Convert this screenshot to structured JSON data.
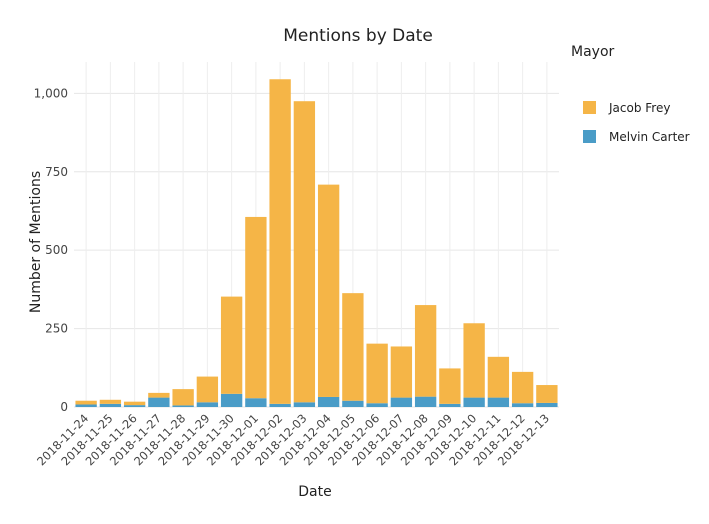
{
  "chart_data": {
    "type": "bar",
    "stacked": true,
    "title": "Mentions by Date",
    "xlabel": "Date",
    "ylabel": "Number of Mentions",
    "ylim": [
      0,
      1100
    ],
    "yticks": [
      0,
      250,
      500,
      750,
      1000
    ],
    "grid": true,
    "legend": {
      "title": "Mayor",
      "placement": "right",
      "entries": [
        {
          "name": "Jacob Frey",
          "color": "#f5b547"
        },
        {
          "name": "Melvin Carter",
          "color": "#4a9cc7"
        }
      ]
    },
    "categories": [
      "2018-11-24",
      "2018-11-25",
      "2018-11-26",
      "2018-11-27",
      "2018-11-28",
      "2018-11-29",
      "2018-11-30",
      "2018-12-01",
      "2018-12-02",
      "2018-12-03",
      "2018-12-04",
      "2018-12-05",
      "2018-12-06",
      "2018-12-07",
      "2018-12-08",
      "2018-12-09",
      "2018-12-10",
      "2018-12-11",
      "2018-12-12",
      "2018-12-13"
    ],
    "series": [
      {
        "name": "Melvin Carter",
        "color": "#4a9cc7",
        "values": [
          8,
          10,
          6,
          30,
          5,
          15,
          42,
          28,
          10,
          15,
          32,
          20,
          12,
          30,
          33,
          10,
          30,
          30,
          12,
          13
        ]
      },
      {
        "name": "Jacob Frey",
        "color": "#f5b547",
        "values": [
          12,
          13,
          11,
          15,
          52,
          82,
          310,
          578,
          1035,
          960,
          677,
          343,
          190,
          163,
          292,
          113,
          237,
          130,
          100,
          57
        ]
      }
    ]
  }
}
